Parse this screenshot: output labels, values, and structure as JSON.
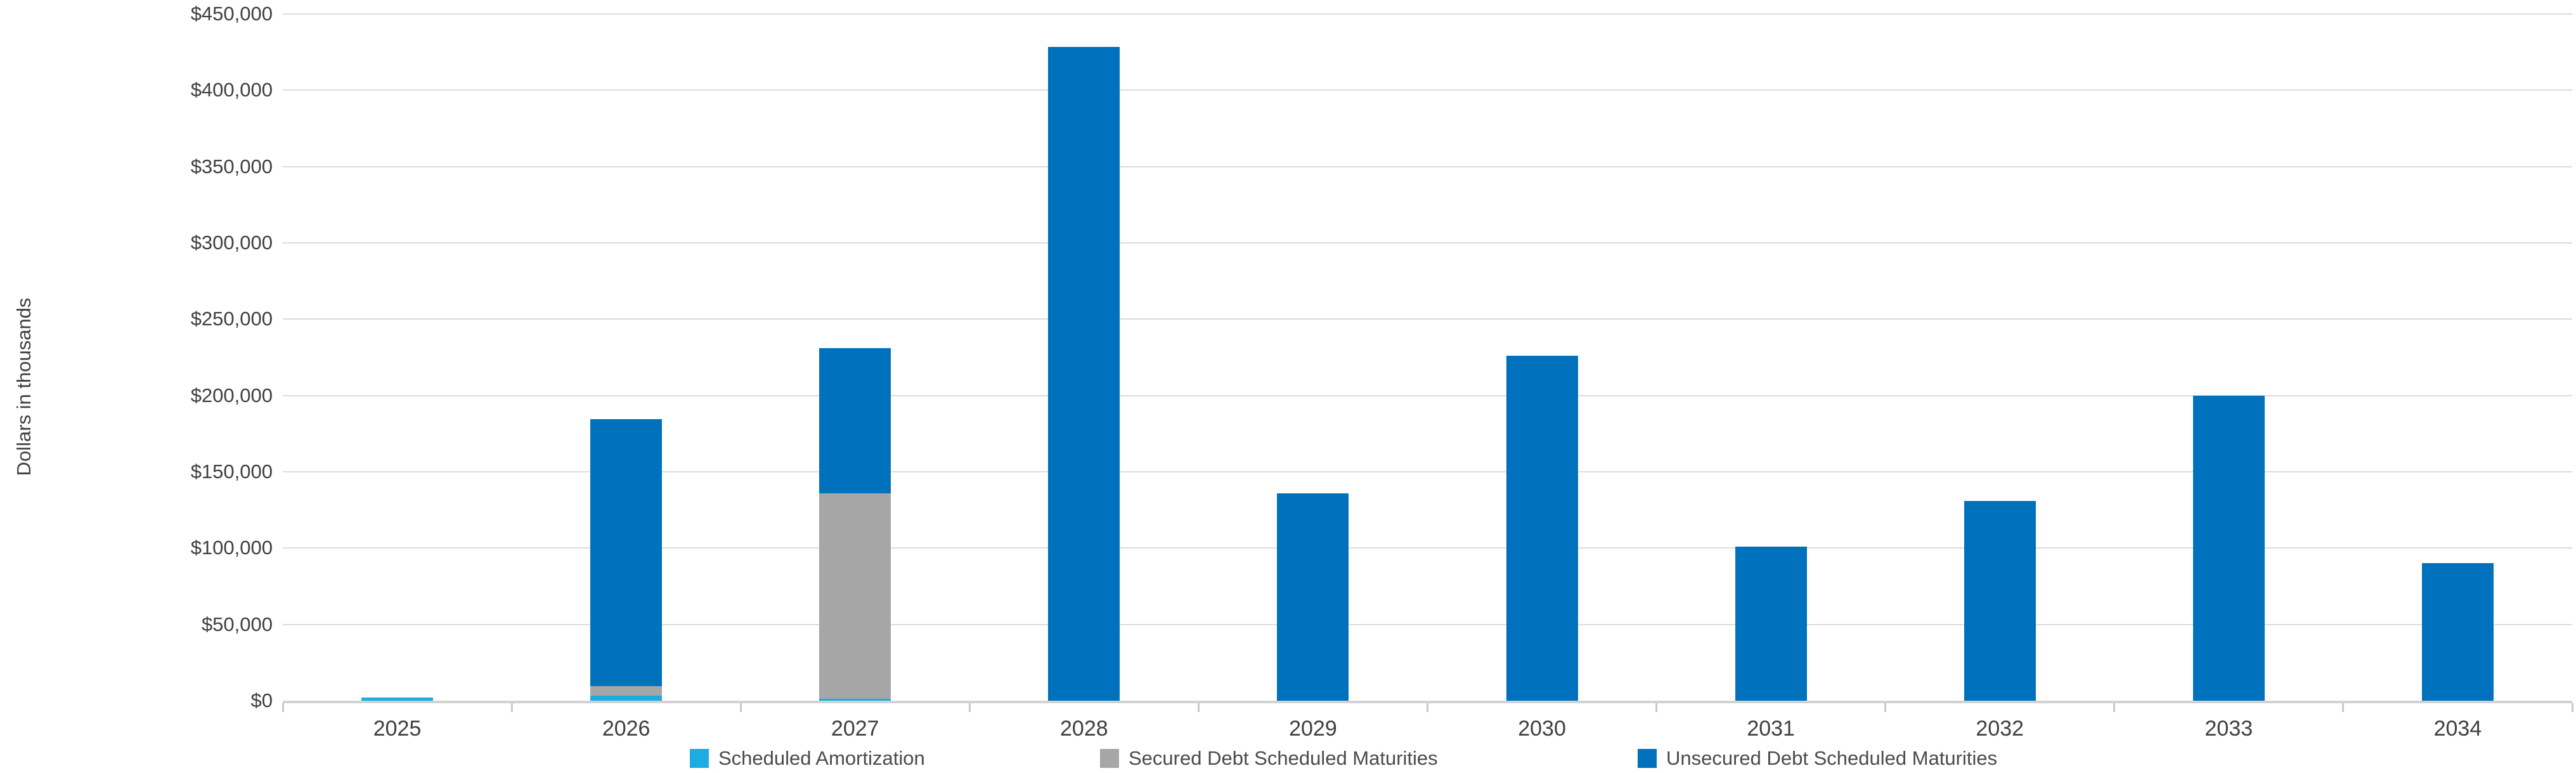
{
  "y_axis": {
    "title": "Dollars in thousands",
    "tick_labels": [
      "$0",
      "$50,000",
      "$100,000",
      "$150,000",
      "$200,000",
      "$250,000",
      "$300,000",
      "$350,000",
      "$400,000",
      "$450,000"
    ],
    "tick_step": 50000,
    "max": 450000
  },
  "legend": [
    {
      "label": "Scheduled Amortization",
      "color": "#1bace4",
      "swatch_icon": "square-swatch-icon"
    },
    {
      "label": "Secured Debt Scheduled Maturities",
      "color": "#a6a6a6",
      "swatch_icon": "square-swatch-icon"
    },
    {
      "label": "Unsecured Debt Scheduled Maturities",
      "color": "#0071bd",
      "swatch_icon": "square-swatch-icon"
    }
  ],
  "colors": {
    "scheduled_amortization": "#1bace4",
    "secured_debt": "#a6a6a6",
    "unsecured_debt": "#0071bd",
    "gridline": "#dcdcdc",
    "axis_line": "#d2d2d2",
    "tick_text": "#3f3f3f"
  },
  "chart_data": {
    "type": "bar",
    "stacked": true,
    "title": "",
    "xlabel": "",
    "ylabel": "Dollars in thousands",
    "ylim": [
      0,
      450000
    ],
    "grid": true,
    "legend_position": "bottom",
    "categories": [
      "2025",
      "2026",
      "2027",
      "2028",
      "2029",
      "2030",
      "2031",
      "2032",
      "2033",
      "2034"
    ],
    "series": [
      {
        "name": "Scheduled Amortization",
        "color": "#1bace4",
        "values": [
          2000,
          3300,
          1200,
          0,
          0,
          0,
          0,
          0,
          0,
          0
        ]
      },
      {
        "name": "Secured Debt Scheduled Maturities",
        "color": "#a6a6a6",
        "values": [
          0,
          6300,
          134800,
          0,
          0,
          0,
          0,
          0,
          0,
          0
        ]
      },
      {
        "name": "Unsecured Debt Scheduled Maturities",
        "color": "#0071bd",
        "values": [
          0,
          175000,
          95000,
          428500,
          136000,
          226000,
          101000,
          131000,
          200000,
          90000
        ]
      }
    ]
  }
}
